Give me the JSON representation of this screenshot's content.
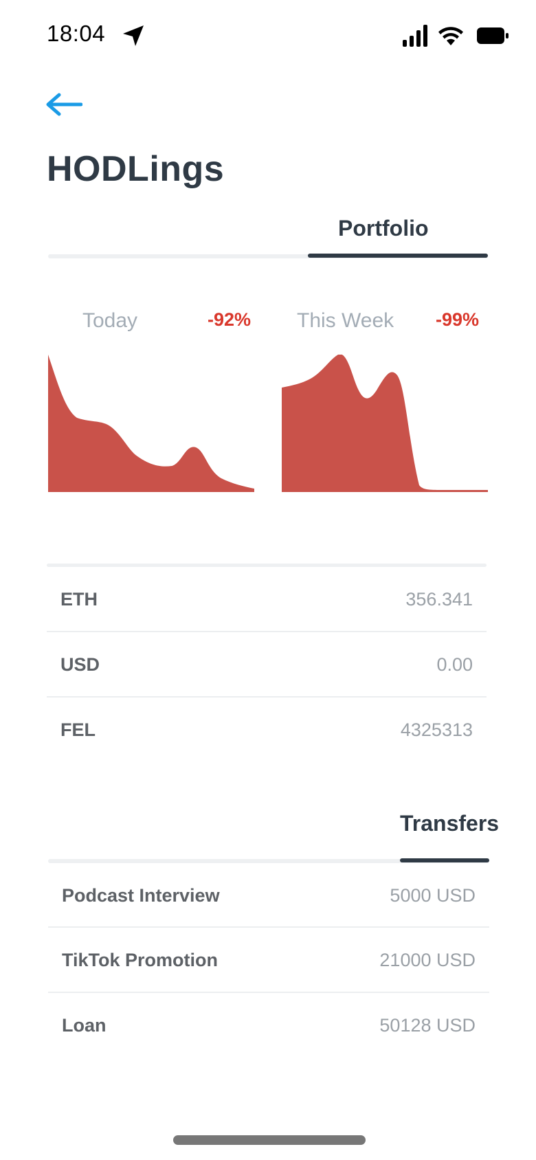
{
  "status_bar": {
    "time": "18:04"
  },
  "header": {
    "title": "HODLings"
  },
  "tabs": {
    "portfolio": "Portfolio",
    "transfers": "Transfers"
  },
  "charts": [
    {
      "label": "Today",
      "change": "-92%"
    },
    {
      "label": "This Week",
      "change": "-99%"
    }
  ],
  "holdings": [
    {
      "asset": "ETH",
      "amount": "356.341"
    },
    {
      "asset": "USD",
      "amount": "0.00"
    },
    {
      "asset": "FEL",
      "amount": "4325313"
    }
  ],
  "transfers": [
    {
      "name": "Podcast Interview",
      "amount": "5000 USD"
    },
    {
      "name": "TikTok Promotion",
      "amount": "21000 USD"
    },
    {
      "name": "Loan",
      "amount": "50128 USD"
    }
  ],
  "colors": {
    "accent": "#1a9be6",
    "chart_fill": "#c9524a",
    "negative": "#d9372b",
    "title": "#2f3a45"
  }
}
